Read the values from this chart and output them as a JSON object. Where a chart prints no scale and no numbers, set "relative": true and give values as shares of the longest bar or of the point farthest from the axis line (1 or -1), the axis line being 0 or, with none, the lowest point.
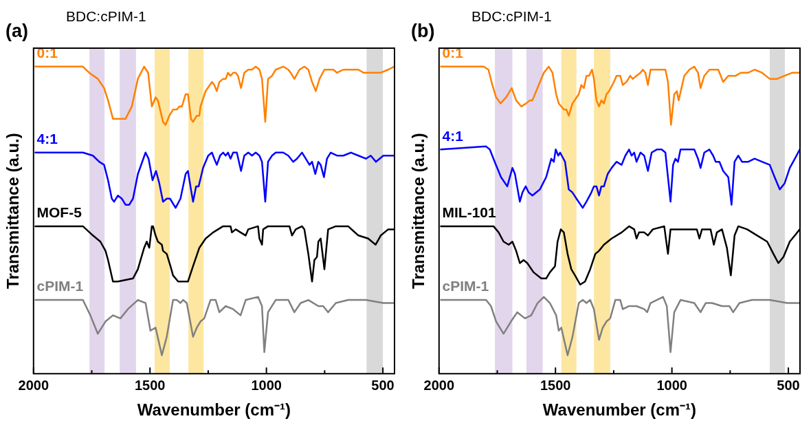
{
  "chart_data": [
    {
      "type": "line",
      "title": "(a)",
      "subtitle": "BDC:cPIM-1",
      "xlabel": "Wavenumber (cm⁻¹)",
      "ylabel": "Transmittance (a.u.)",
      "relative": true,
      "marker": "none",
      "line_style": "solid",
      "xlim": [
        2000,
        450
      ],
      "xticks": [
        2000,
        {
          "value": 1750,
          "label": null
        },
        1500,
        {
          "value": 1250,
          "label": null
        },
        1000,
        {
          "value": 750,
          "label": null
        },
        500
      ],
      "bands": [
        {
          "axis": "x",
          "from": 1760,
          "to": 1695,
          "color": "#e2d6ec"
        },
        {
          "axis": "x",
          "from": 1630,
          "to": 1560,
          "color": "#e2d6ec"
        },
        {
          "axis": "x",
          "from": 1480,
          "to": 1415,
          "color": "#fde6a0"
        },
        {
          "axis": "x",
          "from": 1335,
          "to": 1270,
          "color": "#fde6a0"
        },
        {
          "axis": "x",
          "from": 570,
          "to": 500,
          "color": "#d9d9d9"
        }
      ],
      "series": [
        {
          "name": "0:1",
          "color": "#ff8000",
          "x": [
            1992,
            1788,
            1761,
            1724,
            1697,
            1680,
            1659,
            1632,
            1605,
            1578,
            1552,
            1525,
            1508,
            1492,
            1476,
            1466,
            1444,
            1433,
            1417,
            1401,
            1385,
            1374,
            1363,
            1347,
            1337,
            1324,
            1315,
            1299,
            1288,
            1283,
            1261,
            1234,
            1224,
            1213,
            1202,
            1186,
            1175,
            1165,
            1154,
            1143,
            1132,
            1122,
            1109,
            1095,
            1078,
            1062,
            1046,
            1030,
            1019,
            1005,
            993,
            976,
            960,
            928,
            906,
            896,
            880,
            858,
            837,
            820,
            804,
            788,
            772,
            751,
            713,
            697,
            670,
            637,
            605,
            583,
            552,
            509,
            477,
            452
          ],
          "values": [
            1.0,
            1.0,
            0.98,
            0.96,
            0.93,
            0.89,
            0.83,
            0.83,
            0.83,
            0.87,
            0.96,
            1.0,
            0.98,
            0.87,
            0.9,
            0.89,
            0.82,
            0.81,
            0.84,
            0.86,
            0.86,
            0.87,
            0.87,
            0.91,
            0.91,
            0.83,
            0.82,
            0.84,
            0.84,
            0.87,
            0.92,
            0.95,
            0.94,
            0.92,
            0.95,
            0.96,
            0.96,
            0.98,
            0.97,
            0.98,
            0.98,
            0.97,
            0.93,
            0.98,
            0.99,
            0.99,
            1.0,
            0.99,
            0.96,
            0.82,
            0.96,
            0.97,
            0.99,
            1.0,
            0.99,
            0.98,
            0.96,
            0.99,
            1.0,
            0.99,
            0.95,
            0.92,
            0.96,
            0.99,
            0.99,
            0.98,
            0.99,
            0.99,
            0.99,
            0.98,
            0.98,
            0.98,
            0.99,
            1.0
          ]
        },
        {
          "name": "4:1",
          "color": "#0000ff",
          "x": [
            1992,
            1788,
            1745,
            1718,
            1697,
            1680,
            1664,
            1654,
            1638,
            1621,
            1605,
            1589,
            1573,
            1552,
            1519,
            1506,
            1489,
            1474,
            1460,
            1444,
            1428,
            1414,
            1390,
            1369,
            1347,
            1337,
            1324,
            1315,
            1302,
            1291,
            1272,
            1250,
            1234,
            1224,
            1213,
            1199,
            1186,
            1175,
            1165,
            1154,
            1143,
            1127,
            1109,
            1095,
            1078,
            1062,
            1046,
            1030,
            1019,
            1005,
            993,
            976,
            960,
            928,
            906,
            885,
            869,
            847,
            831,
            815,
            804,
            790,
            777,
            767,
            753,
            740,
            724,
            697,
            670,
            637,
            605,
            573,
            552,
            530,
            498,
            477,
            452
          ],
          "values": [
            0.72,
            0.72,
            0.71,
            0.69,
            0.68,
            0.63,
            0.57,
            0.56,
            0.58,
            0.57,
            0.55,
            0.55,
            0.57,
            0.65,
            0.72,
            0.7,
            0.63,
            0.66,
            0.62,
            0.56,
            0.57,
            0.57,
            0.54,
            0.57,
            0.65,
            0.66,
            0.6,
            0.56,
            0.61,
            0.61,
            0.67,
            0.71,
            0.72,
            0.7,
            0.68,
            0.71,
            0.72,
            0.71,
            0.72,
            0.7,
            0.72,
            0.72,
            0.66,
            0.71,
            0.72,
            0.71,
            0.72,
            0.71,
            0.69,
            0.56,
            0.69,
            0.71,
            0.72,
            0.72,
            0.71,
            0.69,
            0.7,
            0.72,
            0.7,
            0.68,
            0.69,
            0.65,
            0.69,
            0.68,
            0.64,
            0.7,
            0.72,
            0.71,
            0.71,
            0.72,
            0.71,
            0.7,
            0.71,
            0.69,
            0.71,
            0.71,
            0.71
          ]
        },
        {
          "name": "MOF-5",
          "color": "#000000",
          "x": [
            1992,
            1788,
            1745,
            1713,
            1691,
            1680,
            1659,
            1638,
            1573,
            1552,
            1525,
            1514,
            1503,
            1492,
            1487,
            1476,
            1466,
            1449,
            1444,
            1428,
            1412,
            1401,
            1379,
            1358,
            1337,
            1315,
            1288,
            1261,
            1229,
            1186,
            1154,
            1148,
            1132,
            1111,
            1089,
            1078,
            1036,
            1030,
            1019,
            1014,
            993,
            928,
            901,
            890,
            874,
            847,
            837,
            820,
            804,
            794,
            783,
            777,
            767,
            751,
            735,
            702,
            649,
            605,
            563,
            531,
            509,
            477,
            452
          ],
          "values": [
            0.48,
            0.48,
            0.45,
            0.43,
            0.4,
            0.37,
            0.3,
            0.3,
            0.31,
            0.34,
            0.41,
            0.43,
            0.41,
            0.48,
            0.48,
            0.45,
            0.43,
            0.42,
            0.4,
            0.39,
            0.35,
            0.32,
            0.3,
            0.3,
            0.3,
            0.35,
            0.41,
            0.44,
            0.46,
            0.48,
            0.48,
            0.46,
            0.47,
            0.46,
            0.45,
            0.47,
            0.48,
            0.44,
            0.42,
            0.47,
            0.48,
            0.48,
            0.48,
            0.45,
            0.47,
            0.48,
            0.47,
            0.39,
            0.3,
            0.37,
            0.38,
            0.43,
            0.44,
            0.34,
            0.47,
            0.48,
            0.48,
            0.45,
            0.44,
            0.42,
            0.45,
            0.47,
            0.47
          ]
        },
        {
          "name": "cPIM-1",
          "color": "#808080",
          "x": [
            1992,
            1788,
            1756,
            1724,
            1691,
            1659,
            1627,
            1595,
            1552,
            1519,
            1498,
            1476,
            1449,
            1428,
            1401,
            1385,
            1369,
            1358,
            1342,
            1315,
            1299,
            1283,
            1267,
            1240,
            1218,
            1202,
            1175,
            1143,
            1111,
            1089,
            1036,
            1019,
            1009,
            993,
            960,
            906,
            880,
            853,
            820,
            777,
            756,
            735,
            702,
            649,
            573,
            498,
            452
          ],
          "values": [
            0.24,
            0.24,
            0.19,
            0.13,
            0.17,
            0.19,
            0.18,
            0.21,
            0.24,
            0.23,
            0.14,
            0.15,
            0.06,
            0.12,
            0.24,
            0.24,
            0.23,
            0.24,
            0.23,
            0.12,
            0.15,
            0.17,
            0.18,
            0.24,
            0.24,
            0.2,
            0.22,
            0.21,
            0.19,
            0.24,
            0.25,
            0.22,
            0.07,
            0.2,
            0.24,
            0.24,
            0.2,
            0.23,
            0.24,
            0.22,
            0.22,
            0.2,
            0.23,
            0.24,
            0.24,
            0.23,
            0.23
          ]
        }
      ]
    },
    {
      "type": "line",
      "title": "(b)",
      "subtitle": "BDC:cPIM-1",
      "xlabel": "Wavenumber (cm⁻¹)",
      "ylabel": "Transmittance (a.u.)",
      "relative": true,
      "marker": "none",
      "line_style": "solid",
      "xlim": [
        2000,
        450
      ],
      "xticks": [
        2000,
        {
          "value": 1750,
          "label": null
        },
        1500,
        {
          "value": 1250,
          "label": null
        },
        1000,
        {
          "value": 750,
          "label": null
        },
        500
      ],
      "bands": [
        {
          "axis": "x",
          "from": 1760,
          "to": 1685,
          "color": "#e2d6ec"
        },
        {
          "axis": "x",
          "from": 1625,
          "to": 1555,
          "color": "#e2d6ec"
        },
        {
          "axis": "x",
          "from": 1475,
          "to": 1410,
          "color": "#fde6a0"
        },
        {
          "axis": "x",
          "from": 1335,
          "to": 1265,
          "color": "#fde6a0"
        },
        {
          "axis": "x",
          "from": 580,
          "to": 515,
          "color": "#d9d9d9"
        }
      ],
      "series": [
        {
          "name": "0:1",
          "color": "#ff8000",
          "x": [
            1992,
            1809,
            1788,
            1771,
            1755,
            1736,
            1712,
            1688,
            1669,
            1647,
            1626,
            1610,
            1599,
            1572,
            1550,
            1529,
            1513,
            1497,
            1486,
            1475,
            1464,
            1453,
            1443,
            1427,
            1400,
            1389,
            1378,
            1367,
            1356,
            1343,
            1335,
            1324,
            1313,
            1303,
            1292,
            1281,
            1270,
            1249,
            1238,
            1222,
            1211,
            1195,
            1179,
            1168,
            1152,
            1135,
            1125,
            1114,
            1103,
            1092,
            1076,
            1060,
            1044,
            1028,
            1017,
            1004,
            990,
            979,
            971,
            947,
            925,
            904,
            888,
            877,
            861,
            839,
            817,
            801,
            780,
            758,
            742,
            726,
            704,
            672,
            645,
            613,
            580,
            548,
            516,
            483,
            451
          ],
          "values": [
            1.0,
            1.0,
            0.99,
            0.94,
            0.9,
            0.88,
            0.9,
            0.93,
            0.89,
            0.87,
            0.88,
            0.89,
            0.89,
            0.94,
            0.98,
            1.0,
            0.98,
            0.91,
            0.88,
            0.87,
            0.86,
            0.86,
            0.84,
            0.88,
            0.91,
            0.94,
            0.93,
            0.97,
            0.97,
            0.99,
            0.96,
            0.89,
            0.87,
            0.89,
            0.88,
            0.91,
            0.92,
            0.95,
            0.97,
            0.97,
            0.94,
            0.95,
            0.97,
            0.96,
            0.97,
            0.98,
            0.99,
            0.98,
            0.94,
            0.99,
            0.99,
            0.99,
            0.99,
            0.99,
            0.95,
            0.81,
            0.91,
            0.92,
            0.89,
            0.97,
            0.99,
            1.0,
            0.98,
            0.93,
            0.97,
            0.99,
            0.99,
            0.99,
            0.95,
            0.97,
            0.97,
            0.97,
            0.98,
            0.98,
            0.99,
            0.98,
            0.96,
            0.96,
            0.97,
            0.98,
            0.98
          ]
        },
        {
          "name": "4:1",
          "color": "#0000ff",
          "x": [
            1992,
            1798,
            1782,
            1761,
            1734,
            1707,
            1696,
            1685,
            1674,
            1653,
            1642,
            1628,
            1615,
            1599,
            1583,
            1567,
            1540,
            1518,
            1507,
            1499,
            1488,
            1480,
            1459,
            1443,
            1427,
            1410,
            1383,
            1367,
            1346,
            1335,
            1324,
            1313,
            1303,
            1292,
            1276,
            1259,
            1238,
            1216,
            1200,
            1184,
            1173,
            1162,
            1152,
            1135,
            1119,
            1103,
            1087,
            1065,
            1044,
            1028,
            1017,
            1006,
            995,
            985,
            974,
            963,
            925,
            904,
            888,
            877,
            861,
            839,
            823,
            812,
            796,
            780,
            758,
            744,
            731,
            715,
            699,
            672,
            645,
            613,
            580,
            559,
            537,
            516,
            494,
            472,
            451
          ],
          "values": [
            0.73,
            0.74,
            0.73,
            0.69,
            0.64,
            0.61,
            0.64,
            0.67,
            0.65,
            0.56,
            0.59,
            0.61,
            0.59,
            0.58,
            0.59,
            0.6,
            0.64,
            0.7,
            0.69,
            0.73,
            0.71,
            0.72,
            0.69,
            0.6,
            0.59,
            0.57,
            0.54,
            0.56,
            0.59,
            0.61,
            0.61,
            0.58,
            0.61,
            0.61,
            0.65,
            0.67,
            0.69,
            0.68,
            0.71,
            0.73,
            0.71,
            0.72,
            0.69,
            0.72,
            0.71,
            0.66,
            0.72,
            0.73,
            0.73,
            0.72,
            0.64,
            0.56,
            0.68,
            0.7,
            0.69,
            0.73,
            0.73,
            0.73,
            0.7,
            0.67,
            0.72,
            0.73,
            0.71,
            0.69,
            0.69,
            0.66,
            0.64,
            0.55,
            0.69,
            0.71,
            0.69,
            0.69,
            0.7,
            0.69,
            0.68,
            0.64,
            0.6,
            0.62,
            0.67,
            0.7,
            0.73
          ]
        },
        {
          "name": "MIL-101",
          "color": "#000000",
          "x": [
            1992,
            1766,
            1744,
            1723,
            1701,
            1685,
            1669,
            1653,
            1637,
            1621,
            1594,
            1561,
            1540,
            1524,
            1513,
            1502,
            1491,
            1477,
            1464,
            1448,
            1432,
            1416,
            1394,
            1373,
            1351,
            1329,
            1313,
            1292,
            1259,
            1216,
            1184,
            1162,
            1152,
            1141,
            1119,
            1103,
            1082,
            1033,
            1017,
            1006,
            979,
            893,
            882,
            871,
            834,
            820,
            807,
            785,
            764,
            747,
            731,
            715,
            677,
            634,
            591,
            564,
            543,
            521,
            494,
            472,
            451
          ],
          "values": [
            0.48,
            0.48,
            0.46,
            0.43,
            0.42,
            0.43,
            0.4,
            0.36,
            0.37,
            0.36,
            0.33,
            0.31,
            0.31,
            0.33,
            0.34,
            0.35,
            0.43,
            0.47,
            0.46,
            0.39,
            0.34,
            0.32,
            0.29,
            0.3,
            0.34,
            0.39,
            0.4,
            0.42,
            0.44,
            0.46,
            0.48,
            0.47,
            0.44,
            0.46,
            0.46,
            0.45,
            0.47,
            0.48,
            0.39,
            0.47,
            0.47,
            0.47,
            0.44,
            0.47,
            0.47,
            0.42,
            0.46,
            0.47,
            0.41,
            0.32,
            0.45,
            0.48,
            0.47,
            0.45,
            0.43,
            0.39,
            0.36,
            0.38,
            0.43,
            0.45,
            0.47
          ]
        },
        {
          "name": "cPIM-1",
          "color": "#808080",
          "x": [
            1992,
            1798,
            1777,
            1755,
            1723,
            1691,
            1664,
            1631,
            1604,
            1577,
            1550,
            1524,
            1497,
            1486,
            1475,
            1448,
            1427,
            1400,
            1383,
            1367,
            1351,
            1335,
            1313,
            1297,
            1281,
            1265,
            1243,
            1222,
            1211,
            1184,
            1152,
            1119,
            1106,
            1092,
            1038,
            1022,
            1006,
            990,
            963,
            904,
            877,
            855,
            828,
            785,
            753,
            737,
            710,
            656,
            580,
            505,
            451
          ],
          "values": [
            0.24,
            0.24,
            0.22,
            0.17,
            0.13,
            0.17,
            0.2,
            0.18,
            0.19,
            0.23,
            0.25,
            0.23,
            0.19,
            0.14,
            0.15,
            0.06,
            0.12,
            0.23,
            0.24,
            0.23,
            0.24,
            0.21,
            0.11,
            0.15,
            0.17,
            0.18,
            0.24,
            0.24,
            0.21,
            0.22,
            0.22,
            0.21,
            0.2,
            0.23,
            0.25,
            0.22,
            0.07,
            0.2,
            0.24,
            0.23,
            0.2,
            0.23,
            0.23,
            0.22,
            0.22,
            0.2,
            0.23,
            0.24,
            0.24,
            0.23,
            0.23
          ]
        }
      ]
    }
  ]
}
